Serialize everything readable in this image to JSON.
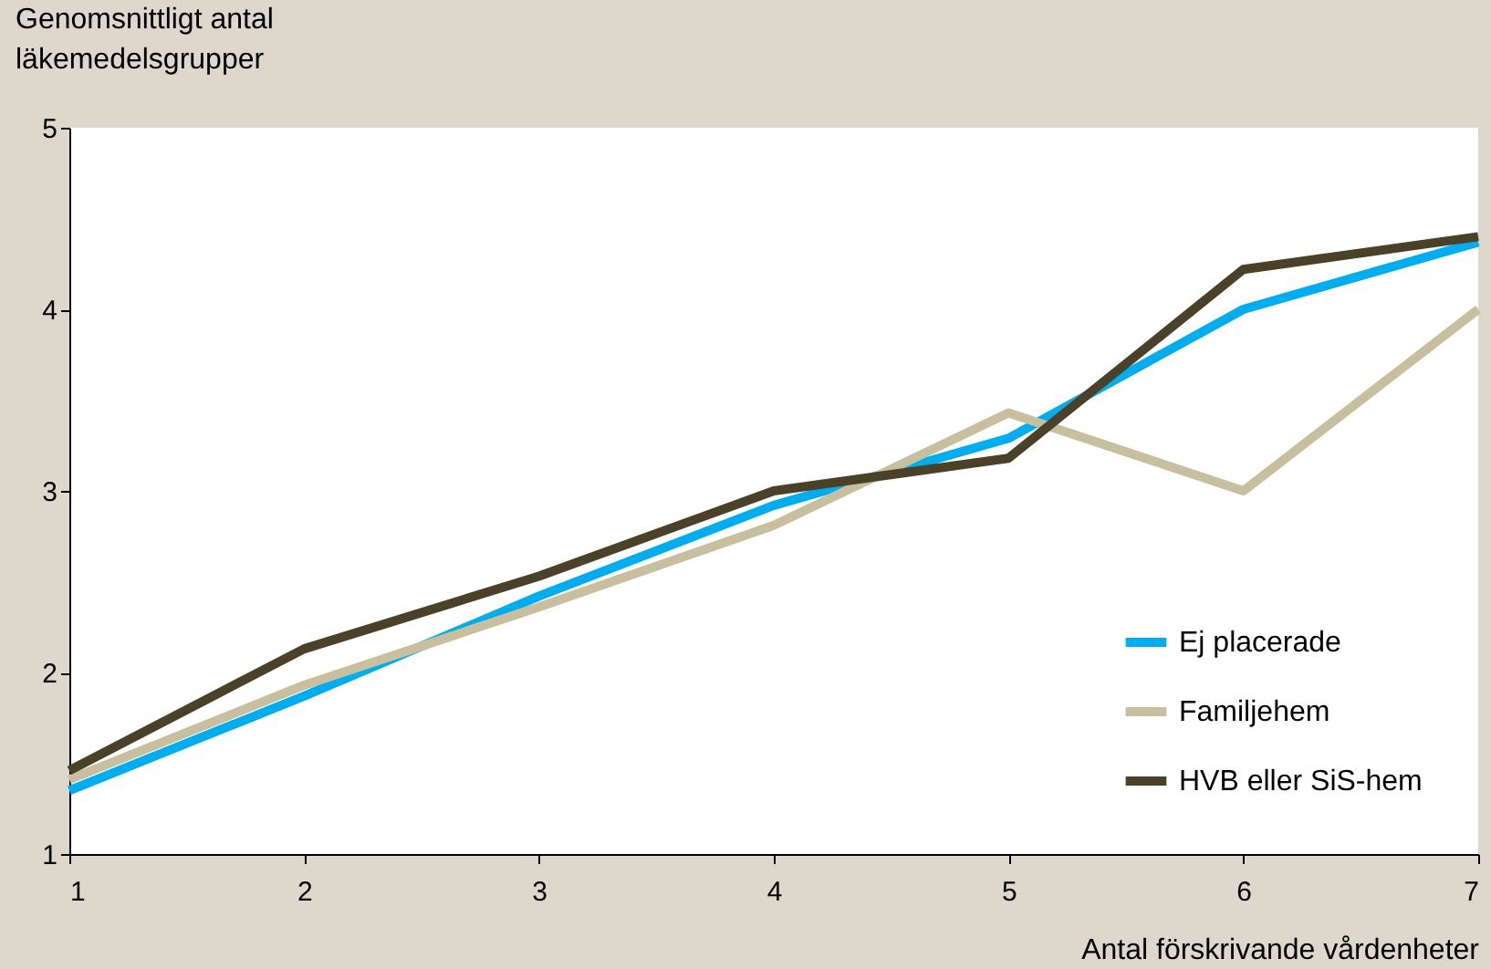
{
  "chart_data": {
    "type": "line",
    "xlabel": "Antal förskrivande vårdenheter",
    "ylabel": "Genomsnittligt antal läkemedelsgrupper",
    "x": [
      1,
      2,
      3,
      4,
      5,
      6,
      7
    ],
    "series": [
      {
        "name": "Ej placerade",
        "color": "#00aeef",
        "values": [
          1.35,
          1.87,
          2.42,
          2.92,
          3.29,
          4.0,
          4.37
        ]
      },
      {
        "name": "Familjehem",
        "color": "#c8bf9e",
        "values": [
          1.41,
          1.93,
          2.36,
          2.81,
          3.43,
          3.0,
          4.0
        ]
      },
      {
        "name": "HVB eller SiS-hem",
        "color": "#4a4128",
        "values": [
          1.46,
          2.13,
          2.53,
          3.0,
          3.18,
          4.22,
          4.4
        ]
      }
    ],
    "xlim": [
      1,
      7
    ],
    "xticks": [
      1,
      2,
      3,
      4,
      5,
      6,
      7
    ],
    "ylim": [
      1,
      5
    ],
    "yticks": [
      1,
      2,
      3,
      4,
      5
    ],
    "grid": false,
    "legend": "bottom right",
    "marker": "none",
    "line_style": "solid"
  }
}
